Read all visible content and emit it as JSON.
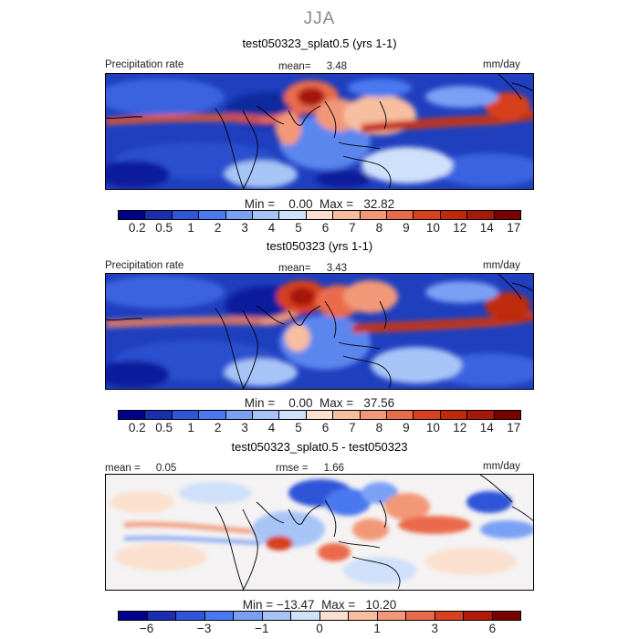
{
  "figure": {
    "season": "JJA",
    "panels": [
      {
        "title": "test050323_splat0.5 (yrs 1-1)",
        "left_label": "Precipitation rate",
        "center_label": "mean=",
        "center_value": "3.48",
        "units": "mm/day",
        "min_label": "Min =",
        "min_value": "0.00",
        "max_label": "Max =",
        "max_value": "32.82",
        "colorbar": {
          "colors": [
            "#00008b",
            "#1a2fb0",
            "#2f55d8",
            "#4a78f0",
            "#7aa0f5",
            "#a7c4f7",
            "#cfe0fa",
            "#fbe0cf",
            "#f7bea0",
            "#f29878",
            "#ea6b4c",
            "#d8401f",
            "#c02a0c",
            "#a61808",
            "#7a0000"
          ],
          "tick_labels": [
            "0.2",
            "0.5",
            "1",
            "2",
            "3",
            "4",
            "5",
            "6",
            "7",
            "8",
            "9",
            "10",
            "12",
            "14",
            "17"
          ]
        }
      },
      {
        "title": "test050323 (yrs 1-1)",
        "left_label": "Precipitation rate",
        "center_label": "mean=",
        "center_value": "3.43",
        "units": "mm/day",
        "min_label": "Min =",
        "min_value": "0.00",
        "max_label": "Max =",
        "max_value": "37.56",
        "colorbar": {
          "colors": [
            "#00008b",
            "#1a2fb0",
            "#2f55d8",
            "#4a78f0",
            "#7aa0f5",
            "#a7c4f7",
            "#cfe0fa",
            "#fbe0cf",
            "#f7bea0",
            "#f29878",
            "#ea6b4c",
            "#d8401f",
            "#c02a0c",
            "#a61808",
            "#7a0000"
          ],
          "tick_labels": [
            "0.2",
            "0.5",
            "1",
            "2",
            "3",
            "4",
            "5",
            "6",
            "7",
            "8",
            "9",
            "10",
            "12",
            "14",
            "17"
          ]
        }
      },
      {
        "title": "test050323_splat0.5 - test050323",
        "left_label": "mean =",
        "left_value": "0.05",
        "center_label": "rmse =",
        "center_value": "1.66",
        "units": "mm/day",
        "min_label": "Min =",
        "min_value": "−13.47",
        "max_label": "Max =",
        "max_value": "10.20",
        "colorbar": {
          "colors": [
            "#00008b",
            "#1a2fb0",
            "#2f55d8",
            "#4a78f0",
            "#7aa0f5",
            "#a7c4f7",
            "#d0e2fa",
            "#fbe0cf",
            "#f7bea0",
            "#f29878",
            "#ea6b4c",
            "#d8401f",
            "#b01a0a",
            "#7a0000"
          ],
          "tick_labels": [
            "−6",
            "−3",
            "−1",
            "0",
            "1",
            "3",
            "6"
          ]
        }
      }
    ]
  }
}
